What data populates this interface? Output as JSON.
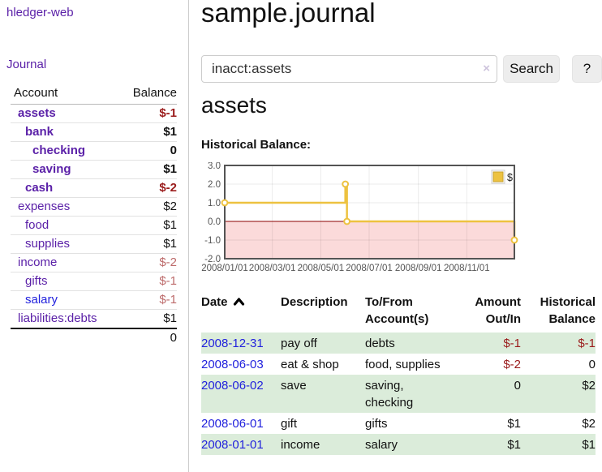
{
  "palette": {
    "purple_link": "#5b21a8",
    "blue_link": "#2222dd",
    "negative_dark": "#9a1b1b",
    "negative_soft": "#bd6b6b",
    "stripe_green": "#dbecda",
    "chart_gold": "#edc240",
    "chart_pink": "#fbdada",
    "zero_line": "#8b0000",
    "plot_border": "#545454",
    "divider": "#cccccc",
    "button_bg": "#ededed",
    "input_border": "#cccccc",
    "axis_text": "#545454"
  },
  "app": {
    "title": "hledger-web"
  },
  "sidebar": {
    "journal_link": "Journal",
    "accounts": {
      "headers": [
        "Account",
        "Balance"
      ],
      "rows": [
        {
          "account": "assets",
          "balance": "$-1",
          "depth": 1,
          "bold": true,
          "balance_tone": "dark",
          "link_tone": "purple"
        },
        {
          "account": "bank",
          "balance": "$1",
          "depth": 2,
          "bold": true,
          "balance_tone": "",
          "link_tone": "purple"
        },
        {
          "account": "checking",
          "balance": "0",
          "depth": 3,
          "bold": true,
          "balance_tone": "",
          "link_tone": "purple"
        },
        {
          "account": "saving",
          "balance": "$1",
          "depth": 3,
          "bold": true,
          "balance_tone": "",
          "link_tone": "purple"
        },
        {
          "account": "cash",
          "balance": "$-2",
          "depth": 2,
          "bold": true,
          "balance_tone": "dark",
          "link_tone": "purple"
        },
        {
          "account": "expenses",
          "balance": "$2",
          "depth": 1,
          "bold": false,
          "balance_tone": "",
          "link_tone": "purple"
        },
        {
          "account": "food",
          "balance": "$1",
          "depth": 2,
          "bold": false,
          "balance_tone": "",
          "link_tone": "purple"
        },
        {
          "account": "supplies",
          "balance": "$1",
          "depth": 2,
          "bold": false,
          "balance_tone": "",
          "link_tone": "purple"
        },
        {
          "account": "income",
          "balance": "$-2",
          "depth": 1,
          "bold": false,
          "balance_tone": "rose",
          "link_tone": "purple"
        },
        {
          "account": "gifts",
          "balance": "$-1",
          "depth": 2,
          "bold": false,
          "balance_tone": "rose",
          "link_tone": "purple"
        },
        {
          "account": "salary",
          "balance": "$-1",
          "depth": 2,
          "bold": false,
          "balance_tone": "rose",
          "link_tone": "blue"
        },
        {
          "account": "liabilities:debts",
          "balance": "$1",
          "depth": 1,
          "bold": false,
          "balance_tone": "",
          "link_tone": "purple"
        }
      ],
      "total": "0"
    }
  },
  "main": {
    "title": "sample.journal",
    "search": {
      "value": "inacct:assets",
      "clear_icon": "×",
      "button_label": "Search",
      "help_label": "?"
    },
    "account_heading": "assets",
    "chart_label": "Historical Balance:",
    "register": {
      "headers": [
        {
          "label": "Date",
          "sorted": "ascending"
        },
        {
          "label": "Description"
        },
        {
          "label": "To/From\nAccount(s)"
        },
        {
          "label": "Amount\nOut/In",
          "align": "right"
        },
        {
          "label": "Historical\nBalance",
          "align": "right"
        }
      ],
      "rows": [
        {
          "date": "2008-12-31",
          "description": "pay off",
          "tofrom": "debts",
          "amount": "$-1",
          "balance": "$-1",
          "amount_tone": "dark",
          "balance_tone": "dark"
        },
        {
          "date": "2008-06-03",
          "description": "eat & shop",
          "tofrom": "food, supplies",
          "amount": "$-2",
          "balance": "0",
          "amount_tone": "dark",
          "balance_tone": ""
        },
        {
          "date": "2008-06-02",
          "description": "save",
          "tofrom": "saving,\nchecking",
          "amount": "0",
          "balance": "$2",
          "amount_tone": "",
          "balance_tone": ""
        },
        {
          "date": "2008-06-01",
          "description": "gift",
          "tofrom": "gifts",
          "amount": "$1",
          "balance": "$2",
          "amount_tone": "",
          "balance_tone": ""
        },
        {
          "date": "2008-01-01",
          "description": "income",
          "tofrom": "salary",
          "amount": "$1",
          "balance": "$1",
          "amount_tone": "",
          "balance_tone": ""
        }
      ]
    }
  },
  "chart_data": {
    "type": "line",
    "title": "Historical Balance",
    "legend": [
      {
        "label": "$",
        "color": "#edc240"
      }
    ],
    "legend_position": "top-right",
    "grid": true,
    "step": true,
    "xlim": [
      0,
      365
    ],
    "ylim": [
      -2,
      3
    ],
    "y_ticks": [
      3,
      2,
      1,
      0,
      -1,
      -2
    ],
    "x_ticks": [
      {
        "day": 0,
        "label": "2008/01/01"
      },
      {
        "day": 60,
        "label": "2008/03/01"
      },
      {
        "day": 121,
        "label": "2008/05/01"
      },
      {
        "day": 182,
        "label": "2008/07/01"
      },
      {
        "day": 244,
        "label": "2008/09/01"
      },
      {
        "day": 305,
        "label": "2008/11/01"
      }
    ],
    "series": [
      {
        "name": "$",
        "points": [
          {
            "date": "2008-01-01",
            "day": 0,
            "value": 1
          },
          {
            "date": "2008-06-01",
            "day": 152,
            "value": 2
          },
          {
            "date": "2008-06-03",
            "day": 154,
            "value": 0
          },
          {
            "date": "2008-12-31",
            "day": 365,
            "value": -1
          }
        ]
      }
    ],
    "negative_region": true,
    "zero_line_color": "#8b0000",
    "line_color": "#edc240"
  }
}
